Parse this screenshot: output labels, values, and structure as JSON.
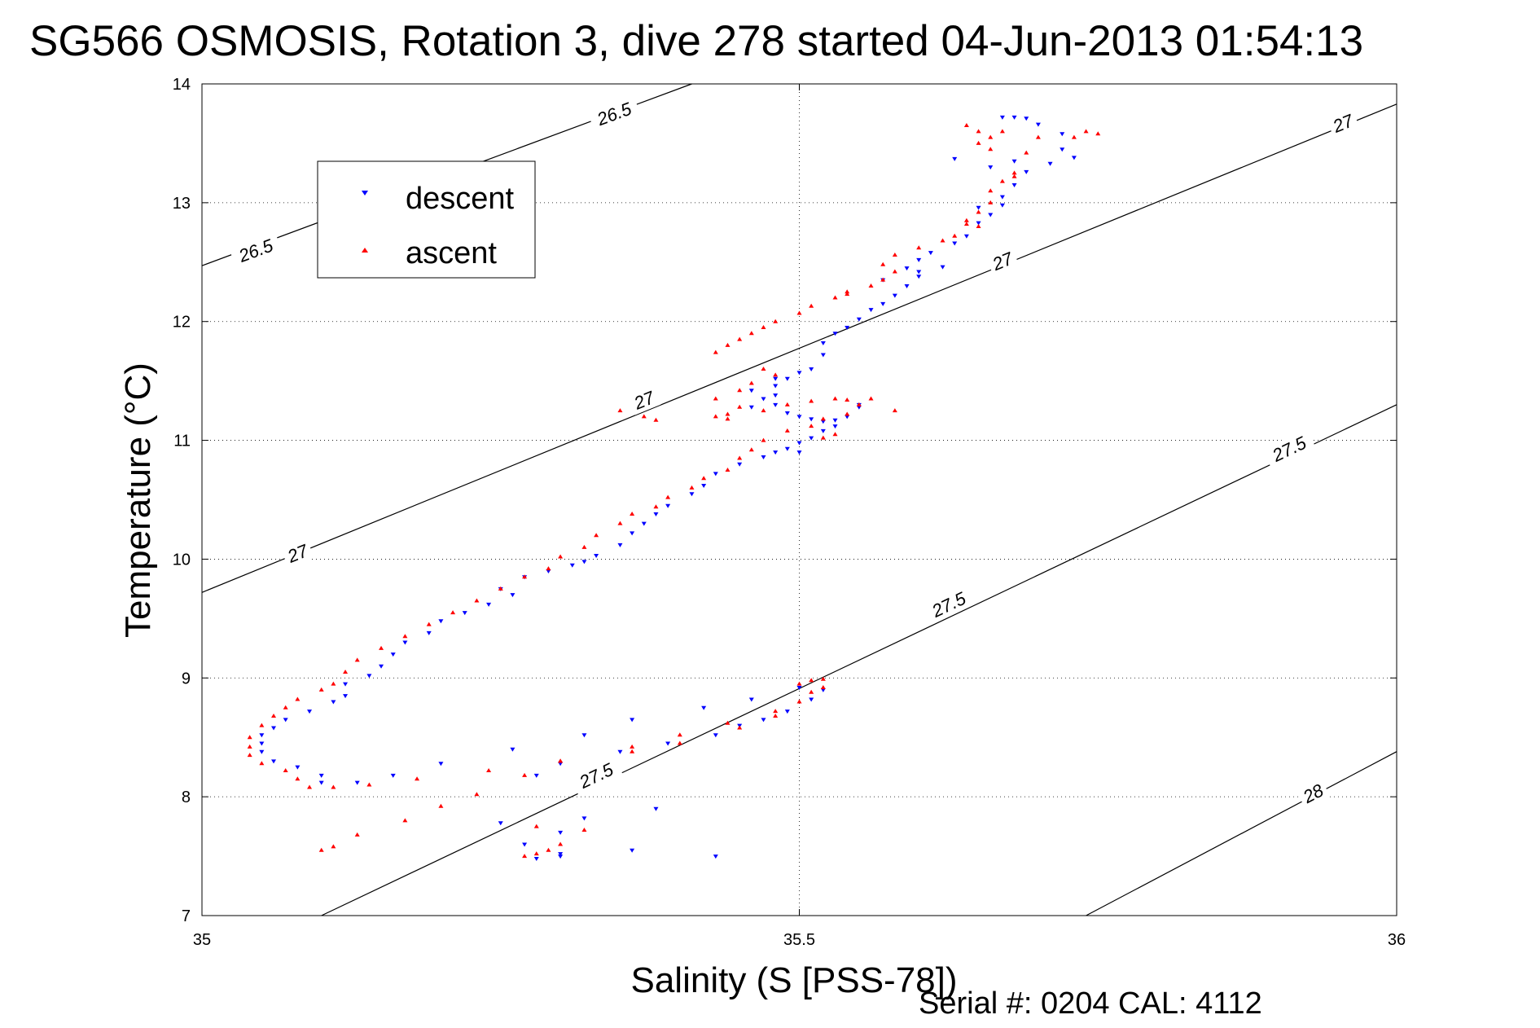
{
  "chart_data": {
    "type": "scatter",
    "title": "SG566 OSMOSIS, Rotation 3, dive 278 started 04-Jun-2013 01:54:13",
    "xlabel": "Salinity (S [PSS-78])",
    "ylabel": "Temperature (°C)",
    "xlim": [
      35,
      36
    ],
    "ylim": [
      7,
      14
    ],
    "x_ticks": [
      "35",
      "35.5",
      "36"
    ],
    "y_ticks": [
      "7",
      "8",
      "9",
      "10",
      "11",
      "12",
      "13",
      "14"
    ],
    "grid": "dotted, at 35.5 and every 1 °C",
    "legend_position": "top-left",
    "footer": "Serial #: 0204  CAL: 4112",
    "density_contours": [
      {
        "label": "26.5",
        "points": [
          [
            35.0,
            12.47
          ],
          [
            35.41,
            14.0
          ]
        ],
        "label_at": [
          [
            35.045,
            12.6
          ],
          [
            35.345,
            13.75
          ]
        ]
      },
      {
        "label": "27",
        "points": [
          [
            35.0,
            9.72
          ],
          [
            36.0,
            13.83
          ]
        ],
        "label_at": [
          [
            35.08,
            10.05
          ],
          [
            35.37,
            11.34
          ],
          [
            35.67,
            12.51
          ],
          [
            35.955,
            13.67
          ]
        ]
      },
      {
        "label": "27.5",
        "points": [
          [
            35.1,
            7.0
          ],
          [
            36.0,
            11.3
          ]
        ],
        "label_at": [
          [
            35.33,
            8.18
          ],
          [
            35.625,
            9.62
          ],
          [
            35.91,
            10.93
          ]
        ]
      },
      {
        "label": "28",
        "points": [
          [
            35.74,
            7.0
          ],
          [
            36.0,
            8.38
          ]
        ],
        "label_at": [
          [
            35.93,
            8.03
          ]
        ]
      }
    ],
    "series": [
      {
        "name": "descent",
        "color": "#0000ff",
        "marker": "triangle-down",
        "points": [
          [
            35.67,
            13.72
          ],
          [
            35.68,
            13.72
          ],
          [
            35.69,
            13.71
          ],
          [
            35.7,
            13.66
          ],
          [
            35.72,
            13.58
          ],
          [
            35.73,
            13.38
          ],
          [
            35.71,
            13.33
          ],
          [
            35.69,
            13.26
          ],
          [
            35.68,
            13.15
          ],
          [
            35.67,
            13.05
          ],
          [
            35.67,
            12.98
          ],
          [
            35.66,
            12.9
          ],
          [
            35.65,
            12.83
          ],
          [
            35.64,
            12.72
          ],
          [
            35.63,
            12.66
          ],
          [
            35.61,
            12.58
          ],
          [
            35.6,
            12.52
          ],
          [
            35.59,
            12.45
          ],
          [
            35.6,
            12.38
          ],
          [
            35.59,
            12.3
          ],
          [
            35.58,
            12.22
          ],
          [
            35.57,
            12.15
          ],
          [
            35.56,
            12.1
          ],
          [
            35.55,
            12.02
          ],
          [
            35.54,
            11.95
          ],
          [
            35.53,
            11.9
          ],
          [
            35.52,
            11.82
          ],
          [
            35.52,
            11.72
          ],
          [
            35.51,
            11.6
          ],
          [
            35.5,
            11.57
          ],
          [
            35.49,
            11.52
          ],
          [
            35.48,
            11.46
          ],
          [
            35.48,
            11.38
          ],
          [
            35.48,
            11.3
          ],
          [
            35.49,
            11.23
          ],
          [
            35.5,
            11.2
          ],
          [
            35.51,
            11.18
          ],
          [
            35.52,
            11.16
          ],
          [
            35.53,
            11.17
          ],
          [
            35.54,
            11.2
          ],
          [
            35.52,
            11.08
          ],
          [
            35.51,
            11.02
          ],
          [
            35.5,
            10.98
          ],
          [
            35.49,
            10.93
          ],
          [
            35.48,
            10.9
          ],
          [
            35.47,
            10.86
          ],
          [
            35.45,
            10.8
          ],
          [
            35.43,
            10.72
          ],
          [
            35.42,
            10.62
          ],
          [
            35.41,
            10.55
          ],
          [
            35.39,
            10.45
          ],
          [
            35.38,
            10.38
          ],
          [
            35.37,
            10.3
          ],
          [
            35.36,
            10.22
          ],
          [
            35.35,
            10.12
          ],
          [
            35.33,
            10.03
          ],
          [
            35.32,
            9.98
          ],
          [
            35.31,
            9.95
          ],
          [
            35.29,
            9.9
          ],
          [
            35.27,
            9.85
          ],
          [
            35.25,
            9.75
          ],
          [
            35.26,
            9.7
          ],
          [
            35.24,
            9.62
          ],
          [
            35.22,
            9.55
          ],
          [
            35.2,
            9.48
          ],
          [
            35.19,
            9.38
          ],
          [
            35.17,
            9.3
          ],
          [
            35.16,
            9.2
          ],
          [
            35.15,
            9.1
          ],
          [
            35.14,
            9.02
          ],
          [
            35.12,
            8.95
          ],
          [
            35.12,
            8.85
          ],
          [
            35.11,
            8.8
          ],
          [
            35.09,
            8.72
          ],
          [
            35.07,
            8.65
          ],
          [
            35.06,
            8.58
          ],
          [
            35.05,
            8.52
          ],
          [
            35.05,
            8.45
          ],
          [
            35.05,
            8.38
          ],
          [
            35.06,
            8.3
          ],
          [
            35.08,
            8.25
          ],
          [
            35.1,
            8.18
          ],
          [
            35.1,
            8.12
          ],
          [
            35.13,
            8.12
          ],
          [
            35.16,
            8.18
          ],
          [
            35.2,
            8.28
          ],
          [
            35.26,
            8.4
          ],
          [
            35.32,
            8.52
          ],
          [
            35.36,
            8.65
          ],
          [
            35.42,
            8.75
          ],
          [
            35.46,
            8.82
          ],
          [
            35.5,
            8.92
          ],
          [
            35.52,
            8.9
          ],
          [
            35.51,
            8.82
          ],
          [
            35.49,
            8.72
          ],
          [
            35.47,
            8.65
          ],
          [
            35.45,
            8.6
          ],
          [
            35.43,
            8.52
          ],
          [
            35.39,
            8.45
          ],
          [
            35.35,
            8.38
          ],
          [
            35.3,
            8.28
          ],
          [
            35.28,
            8.18
          ],
          [
            35.38,
            7.9
          ],
          [
            35.32,
            7.82
          ],
          [
            35.25,
            7.78
          ],
          [
            35.3,
            7.7
          ],
          [
            35.27,
            7.6
          ],
          [
            35.3,
            7.52
          ],
          [
            35.36,
            7.55
          ],
          [
            35.43,
            7.5
          ],
          [
            35.28,
            7.48
          ],
          [
            35.3,
            7.5
          ],
          [
            35.6,
            12.42
          ],
          [
            35.62,
            12.46
          ],
          [
            35.57,
            12.35
          ],
          [
            35.63,
            13.37
          ],
          [
            35.66,
            13.3
          ],
          [
            35.68,
            13.35
          ],
          [
            35.72,
            13.45
          ],
          [
            35.65,
            12.96
          ],
          [
            35.46,
            11.28
          ],
          [
            35.47,
            11.35
          ],
          [
            35.46,
            11.42
          ],
          [
            35.48,
            11.52
          ],
          [
            35.55,
            11.28
          ],
          [
            35.53,
            11.12
          ],
          [
            35.5,
            10.9
          ],
          [
            35.55,
            11.3
          ]
        ]
      },
      {
        "name": "ascent",
        "color": "#ff0000",
        "marker": "triangle-up",
        "points": [
          [
            35.64,
            13.65
          ],
          [
            35.65,
            13.6
          ],
          [
            35.66,
            13.55
          ],
          [
            35.67,
            13.6
          ],
          [
            35.65,
            13.5
          ],
          [
            35.66,
            13.45
          ],
          [
            35.74,
            13.6
          ],
          [
            35.7,
            13.55
          ],
          [
            35.68,
            13.25
          ],
          [
            35.67,
            13.18
          ],
          [
            35.66,
            13.1
          ],
          [
            35.66,
            13.0
          ],
          [
            35.65,
            12.92
          ],
          [
            35.64,
            12.85
          ],
          [
            35.65,
            12.8
          ],
          [
            35.63,
            12.72
          ],
          [
            35.62,
            12.68
          ],
          [
            35.6,
            12.62
          ],
          [
            35.58,
            12.56
          ],
          [
            35.57,
            12.48
          ],
          [
            35.58,
            12.42
          ],
          [
            35.57,
            12.35
          ],
          [
            35.56,
            12.3
          ],
          [
            35.54,
            12.25
          ],
          [
            35.53,
            12.2
          ],
          [
            35.51,
            12.13
          ],
          [
            35.5,
            12.07
          ],
          [
            35.48,
            12.0
          ],
          [
            35.47,
            11.95
          ],
          [
            35.46,
            11.9
          ],
          [
            35.45,
            11.85
          ],
          [
            35.44,
            11.8
          ],
          [
            35.43,
            11.74
          ],
          [
            35.47,
            11.6
          ],
          [
            35.48,
            11.55
          ],
          [
            35.46,
            11.48
          ],
          [
            35.45,
            11.42
          ],
          [
            35.43,
            11.35
          ],
          [
            35.45,
            11.28
          ],
          [
            35.43,
            11.2
          ],
          [
            35.44,
            11.22
          ],
          [
            35.47,
            11.25
          ],
          [
            35.49,
            11.3
          ],
          [
            35.51,
            11.33
          ],
          [
            35.53,
            11.35
          ],
          [
            35.54,
            11.34
          ],
          [
            35.55,
            11.3
          ],
          [
            35.54,
            11.22
          ],
          [
            35.52,
            11.18
          ],
          [
            35.51,
            11.12
          ],
          [
            35.49,
            11.08
          ],
          [
            35.47,
            11.0
          ],
          [
            35.46,
            10.92
          ],
          [
            35.45,
            10.85
          ],
          [
            35.44,
            10.75
          ],
          [
            35.42,
            10.68
          ],
          [
            35.41,
            10.6
          ],
          [
            35.39,
            10.52
          ],
          [
            35.38,
            10.44
          ],
          [
            35.36,
            10.38
          ],
          [
            35.35,
            10.3
          ],
          [
            35.33,
            10.2
          ],
          [
            35.32,
            10.1
          ],
          [
            35.3,
            10.02
          ],
          [
            35.29,
            9.92
          ],
          [
            35.27,
            9.85
          ],
          [
            35.25,
            9.75
          ],
          [
            35.23,
            9.65
          ],
          [
            35.21,
            9.55
          ],
          [
            35.19,
            9.45
          ],
          [
            35.17,
            9.35
          ],
          [
            35.15,
            9.25
          ],
          [
            35.13,
            9.15
          ],
          [
            35.12,
            9.05
          ],
          [
            35.11,
            8.95
          ],
          [
            35.1,
            8.9
          ],
          [
            35.08,
            8.82
          ],
          [
            35.07,
            8.75
          ],
          [
            35.06,
            8.68
          ],
          [
            35.05,
            8.6
          ],
          [
            35.04,
            8.5
          ],
          [
            35.04,
            8.42
          ],
          [
            35.04,
            8.35
          ],
          [
            35.05,
            8.28
          ],
          [
            35.07,
            8.22
          ],
          [
            35.08,
            8.15
          ],
          [
            35.09,
            8.08
          ],
          [
            35.11,
            8.08
          ],
          [
            35.14,
            8.1
          ],
          [
            35.18,
            8.15
          ],
          [
            35.24,
            8.22
          ],
          [
            35.3,
            8.3
          ],
          [
            35.36,
            8.42
          ],
          [
            35.4,
            8.52
          ],
          [
            35.44,
            8.62
          ],
          [
            35.48,
            8.72
          ],
          [
            35.5,
            8.8
          ],
          [
            35.51,
            8.88
          ],
          [
            35.5,
            8.95
          ],
          [
            35.51,
            8.98
          ],
          [
            35.52,
            8.99
          ],
          [
            35.52,
            8.92
          ],
          [
            35.48,
            8.68
          ],
          [
            35.45,
            8.58
          ],
          [
            35.4,
            8.45
          ],
          [
            35.36,
            8.38
          ],
          [
            35.3,
            8.3
          ],
          [
            35.27,
            8.18
          ],
          [
            35.23,
            8.02
          ],
          [
            35.2,
            7.92
          ],
          [
            35.17,
            7.8
          ],
          [
            35.13,
            7.68
          ],
          [
            35.11,
            7.58
          ],
          [
            35.28,
            7.52
          ],
          [
            35.27,
            7.5
          ],
          [
            35.29,
            7.55
          ],
          [
            35.3,
            7.6
          ],
          [
            35.32,
            7.72
          ],
          [
            35.28,
            7.75
          ],
          [
            35.1,
            7.55
          ],
          [
            35.35,
            11.25
          ],
          [
            35.37,
            11.2
          ],
          [
            35.38,
            11.17
          ],
          [
            35.44,
            11.18
          ],
          [
            35.52,
            11.02
          ],
          [
            35.53,
            11.05
          ],
          [
            35.56,
            11.35
          ],
          [
            35.58,
            11.25
          ],
          [
            35.75,
            13.58
          ],
          [
            35.73,
            13.55
          ],
          [
            35.69,
            13.42
          ],
          [
            35.64,
            12.82
          ],
          [
            35.68,
            13.22
          ],
          [
            35.54,
            12.23
          ]
        ]
      }
    ]
  }
}
